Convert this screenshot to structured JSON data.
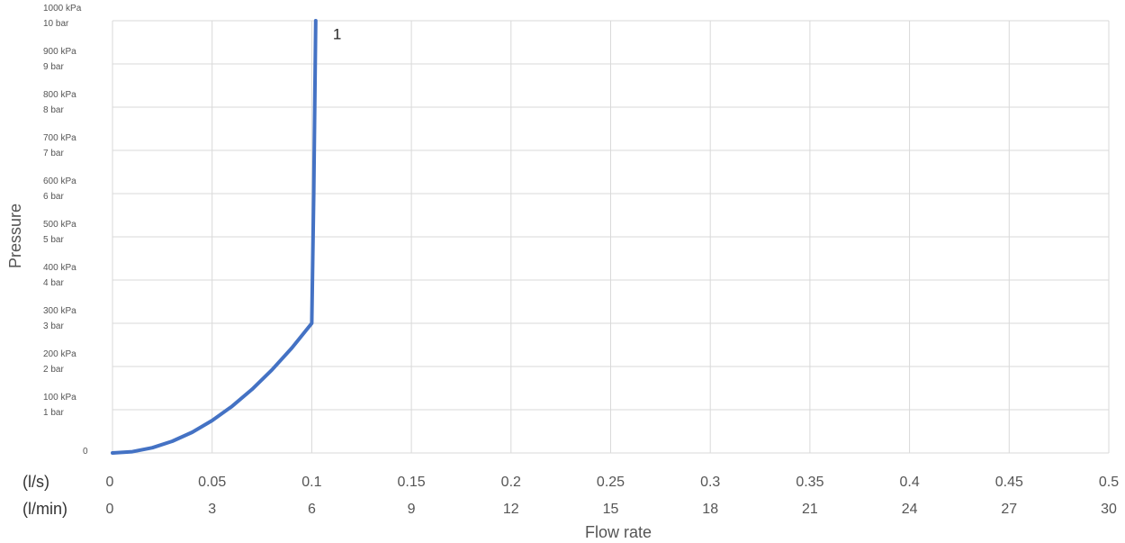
{
  "chart_data": {
    "type": "line",
    "xlabel": "Flow rate",
    "ylabel": "Pressure",
    "xlim": [
      0,
      0.5
    ],
    "ylim": [
      0,
      10
    ],
    "x_ticks": [
      {
        "ls": "0",
        "lmin": "0"
      },
      {
        "ls": "0.05",
        "lmin": "3"
      },
      {
        "ls": "0.1",
        "lmin": "6"
      },
      {
        "ls": "0.15",
        "lmin": "9"
      },
      {
        "ls": "0.2",
        "lmin": "12"
      },
      {
        "ls": "0.25",
        "lmin": "15"
      },
      {
        "ls": "0.3",
        "lmin": "18"
      },
      {
        "ls": "0.35",
        "lmin": "21"
      },
      {
        "ls": "0.4",
        "lmin": "24"
      },
      {
        "ls": "0.45",
        "lmin": "27"
      },
      {
        "ls": "0.5",
        "lmin": "30"
      }
    ],
    "x_unit_rows": [
      "(l/s)",
      "(l/min)"
    ],
    "y_ticks": [
      {
        "value": 0,
        "kpa": "0",
        "bar": ""
      },
      {
        "value": 1,
        "kpa": "100 kPa",
        "bar": "1 bar"
      },
      {
        "value": 2,
        "kpa": "200 kPa",
        "bar": "2 bar"
      },
      {
        "value": 3,
        "kpa": "300 kPa",
        "bar": "3 bar"
      },
      {
        "value": 4,
        "kpa": "400 kPa",
        "bar": "4 bar"
      },
      {
        "value": 5,
        "kpa": "500 kPa",
        "bar": "5 bar"
      },
      {
        "value": 6,
        "kpa": "600 kPa",
        "bar": "6 bar"
      },
      {
        "value": 7,
        "kpa": "700 kPa",
        "bar": "7 bar"
      },
      {
        "value": 8,
        "kpa": "800 kPa",
        "bar": "8 bar"
      },
      {
        "value": 9,
        "kpa": "900 kPa",
        "bar": "9 bar"
      },
      {
        "value": 10,
        "kpa": "1000 kPa",
        "bar": "10 bar"
      }
    ],
    "grid": true,
    "series": [
      {
        "color": "#4472c4",
        "points": [
          [
            0.0,
            0.0
          ],
          [
            0.01,
            0.03
          ],
          [
            0.02,
            0.12
          ],
          [
            0.03,
            0.27
          ],
          [
            0.04,
            0.48
          ],
          [
            0.05,
            0.75
          ],
          [
            0.06,
            1.08
          ],
          [
            0.07,
            1.47
          ],
          [
            0.08,
            1.92
          ],
          [
            0.09,
            2.43
          ],
          [
            0.1,
            3.0
          ],
          [
            0.101,
            6.0
          ],
          [
            0.102,
            10.0
          ]
        ]
      }
    ],
    "annotations": [
      {
        "text": "1",
        "x": 0.107,
        "y": 9.7
      }
    ]
  }
}
